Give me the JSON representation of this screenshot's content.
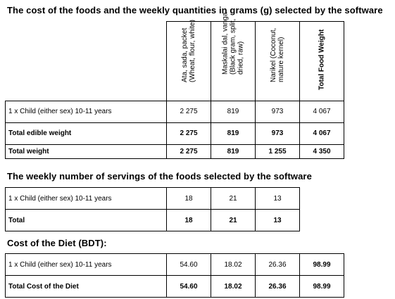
{
  "section1": {
    "title": "The cost of the foods and the weekly quantities in grams (g) selected by the software",
    "columns": [
      {
        "line1": "Ata, sada, packet",
        "line2": "(Wheat, flour, white)",
        "line3": ""
      },
      {
        "line1": "Maskalai dal, vanga",
        "line2": "(Black gram, split,",
        "line3": "dried, raw)"
      },
      {
        "line1": "Narikel (Coconut,",
        "line2": "mature kernel)",
        "line3": ""
      },
      {
        "line1": "Total Food Weight",
        "line2": "",
        "line3": ""
      }
    ],
    "rows": [
      {
        "label": "1 x Child (either sex) 10-11 years",
        "values": [
          "2 275",
          "819",
          "973",
          "4 067"
        ]
      },
      {
        "label": "Total edible weight",
        "values": [
          "2 275",
          "819",
          "973",
          "4 067"
        ]
      },
      {
        "label": "Total weight",
        "values": [
          "2 275",
          "819",
          "1 255",
          "4 350"
        ]
      }
    ]
  },
  "section2": {
    "title": "The weekly number of servings of the foods selected by the software",
    "rows": [
      {
        "label": "1 x Child (either sex) 10-11 years",
        "values": [
          "18",
          "21",
          "13"
        ]
      },
      {
        "label": "Total",
        "values": [
          "18",
          "21",
          "13"
        ]
      }
    ]
  },
  "section3": {
    "title": "Cost of the Diet (BDT):",
    "rows": [
      {
        "label": "1 x Child (either sex) 10-11 years",
        "values": [
          "54.60",
          "18.02",
          "26.36",
          "98.99"
        ]
      },
      {
        "label": "Total Cost of the Diet",
        "values": [
          "54.60",
          "18.02",
          "26.36",
          "98.99"
        ]
      }
    ]
  }
}
